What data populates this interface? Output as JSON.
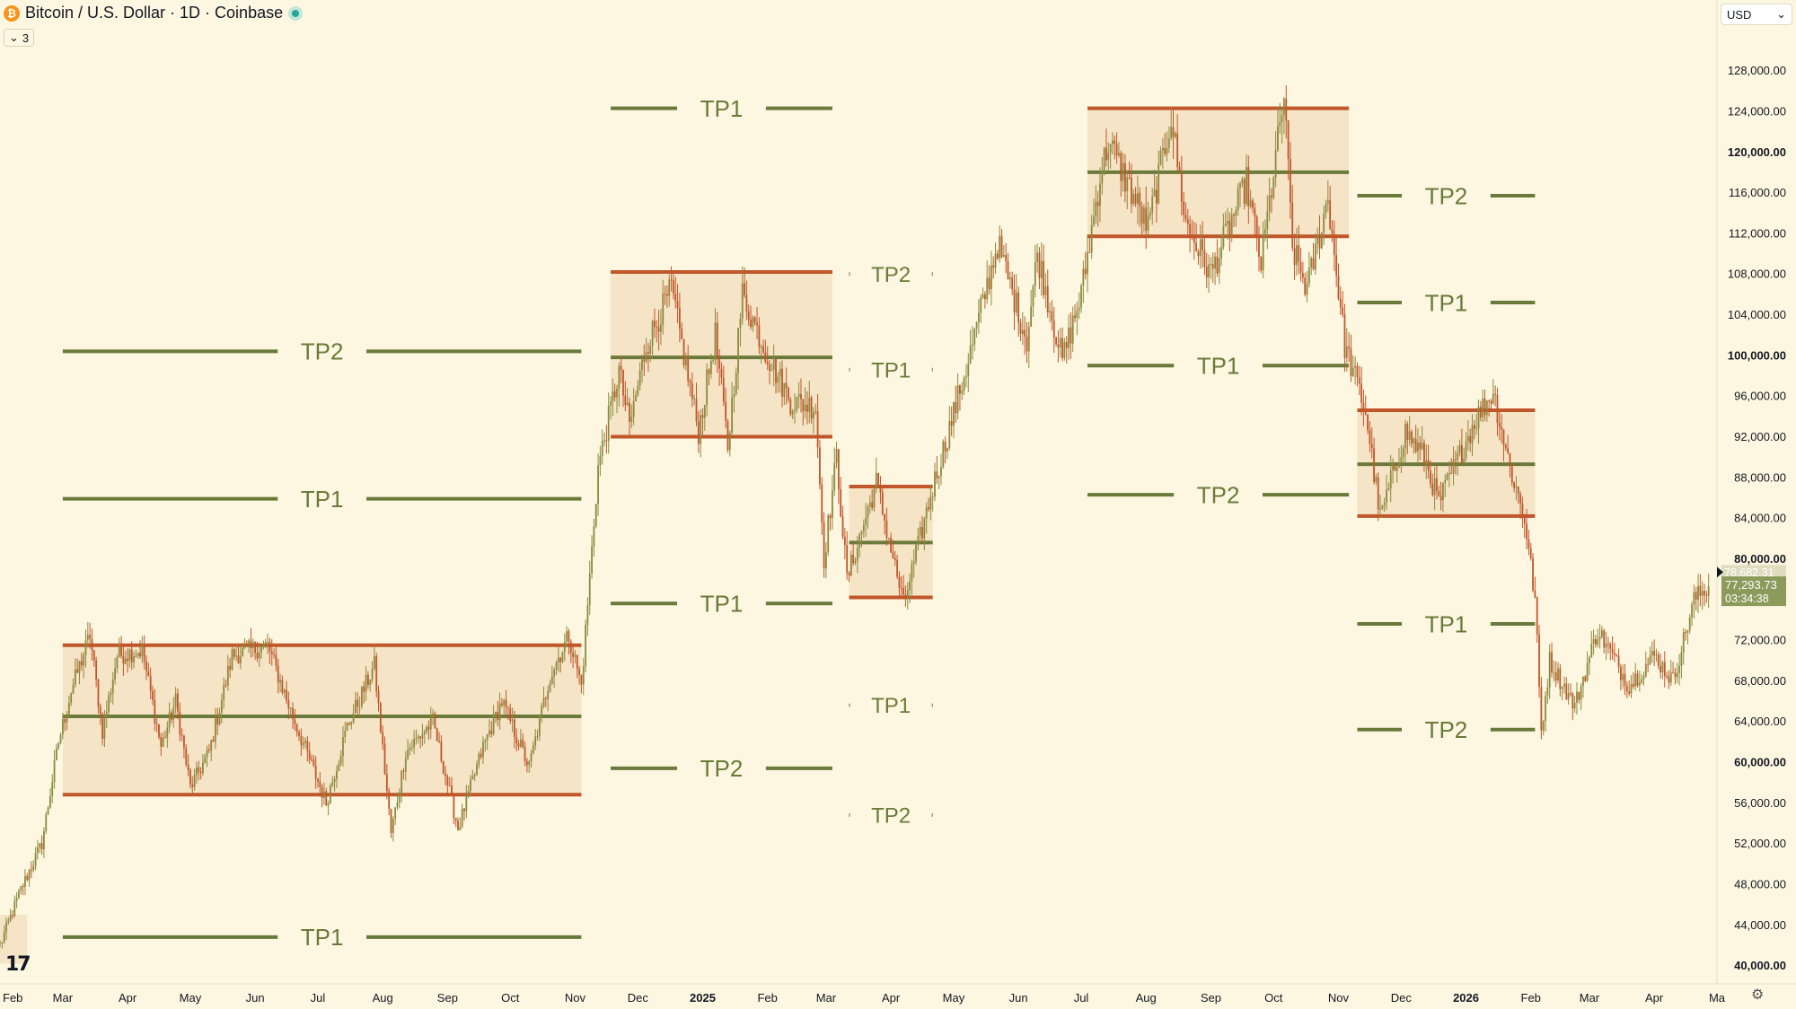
{
  "header": {
    "symbol_title": "Bitcoin / U.S. Dollar · 1D · Coinbase",
    "logo_glyph": "₿",
    "indicator_count": "3"
  },
  "currency_select": {
    "value": "USD"
  },
  "brand_logo": "17",
  "colors": {
    "background": "#fdf7e1",
    "range_box": "#f5e4c6",
    "range_border": "#c0562a",
    "target_line": "#6a7a3a",
    "candle_up": "#8a8a3e",
    "candle_down": "#c0562a",
    "axis_text": "#131722",
    "last_price_bg": "#8c9a5b",
    "prev_price_bg": "#c5c8a4"
  },
  "chart_data": {
    "type": "candlestick",
    "title": "Bitcoin / U.S. Dollar · 1D · Coinbase",
    "price_axis": {
      "range": [
        38200,
        133000
      ],
      "ticks": [
        {
          "value": 128000,
          "label": "128,000.00",
          "bold": false
        },
        {
          "value": 124000,
          "label": "124,000.00",
          "bold": false
        },
        {
          "value": 120000,
          "label": "120,000.00",
          "bold": true
        },
        {
          "value": 116000,
          "label": "116,000.00",
          "bold": false
        },
        {
          "value": 112000,
          "label": "112,000.00",
          "bold": false
        },
        {
          "value": 108000,
          "label": "108,000.00",
          "bold": false
        },
        {
          "value": 104000,
          "label": "104,000.00",
          "bold": false
        },
        {
          "value": 100000,
          "label": "100,000.00",
          "bold": true
        },
        {
          "value": 96000,
          "label": "96,000.00",
          "bold": false
        },
        {
          "value": 92000,
          "label": "92,000.00",
          "bold": false
        },
        {
          "value": 88000,
          "label": "88,000.00",
          "bold": false
        },
        {
          "value": 84000,
          "label": "84,000.00",
          "bold": false
        },
        {
          "value": 80000,
          "label": "80,000.00",
          "bold": true
        },
        {
          "value": 72000,
          "label": "72,000.00",
          "bold": false
        },
        {
          "value": 68000,
          "label": "68,000.00",
          "bold": false
        },
        {
          "value": 64000,
          "label": "64,000.00",
          "bold": false
        },
        {
          "value": 60000,
          "label": "60,000.00",
          "bold": true
        },
        {
          "value": 56000,
          "label": "56,000.00",
          "bold": false
        },
        {
          "value": 52000,
          "label": "52,000.00",
          "bold": false
        },
        {
          "value": 48000,
          "label": "48,000.00",
          "bold": false
        },
        {
          "value": 44000,
          "label": "44,000.00",
          "bold": false
        },
        {
          "value": 40000,
          "label": "40,000.00",
          "bold": true
        }
      ]
    },
    "time_axis": {
      "range": [
        "2024-01-31",
        "2026-05-01"
      ],
      "ticks": [
        {
          "date": "2024-02-01",
          "label": "Feb",
          "bold": false
        },
        {
          "date": "2024-03-01",
          "label": "Mar",
          "bold": false
        },
        {
          "date": "2024-04-01",
          "label": "Apr",
          "bold": false
        },
        {
          "date": "2024-05-01",
          "label": "May",
          "bold": false
        },
        {
          "date": "2024-06-01",
          "label": "Jun",
          "bold": false
        },
        {
          "date": "2024-07-01",
          "label": "Jul",
          "bold": false
        },
        {
          "date": "2024-08-01",
          "label": "Aug",
          "bold": false
        },
        {
          "date": "2024-09-01",
          "label": "Sep",
          "bold": false
        },
        {
          "date": "2024-10-01",
          "label": "Oct",
          "bold": false
        },
        {
          "date": "2024-11-01",
          "label": "Nov",
          "bold": false
        },
        {
          "date": "2024-12-01",
          "label": "Dec",
          "bold": false
        },
        {
          "date": "2025-01-01",
          "label": "2025",
          "bold": true
        },
        {
          "date": "2025-02-01",
          "label": "Feb",
          "bold": false
        },
        {
          "date": "2025-03-01",
          "label": "Mar",
          "bold": false
        },
        {
          "date": "2025-04-01",
          "label": "Apr",
          "bold": false
        },
        {
          "date": "2025-05-01",
          "label": "May",
          "bold": false
        },
        {
          "date": "2025-06-01",
          "label": "Jun",
          "bold": false
        },
        {
          "date": "2025-07-01",
          "label": "Jul",
          "bold": false
        },
        {
          "date": "2025-08-01",
          "label": "Aug",
          "bold": false
        },
        {
          "date": "2025-09-01",
          "label": "Sep",
          "bold": false
        },
        {
          "date": "2025-10-01",
          "label": "Oct",
          "bold": false
        },
        {
          "date": "2025-11-01",
          "label": "Nov",
          "bold": false
        },
        {
          "date": "2025-12-01",
          "label": "Dec",
          "bold": false
        },
        {
          "date": "2026-01-01",
          "label": "2026",
          "bold": true
        },
        {
          "date": "2026-02-01",
          "label": "Feb",
          "bold": false
        },
        {
          "date": "2026-03-01",
          "label": "Mar",
          "bold": false
        },
        {
          "date": "2026-04-01",
          "label": "Apr",
          "bold": false
        },
        {
          "date": "2026-05-01",
          "label": "Ma",
          "bold": false
        }
      ]
    },
    "price_path": [
      [
        "2024-01-31",
        42000
      ],
      [
        "2024-02-10",
        47500
      ],
      [
        "2024-02-20",
        52000
      ],
      [
        "2024-02-28",
        62000
      ],
      [
        "2024-03-05",
        67000
      ],
      [
        "2024-03-14",
        72500
      ],
      [
        "2024-03-20",
        63000
      ],
      [
        "2024-03-27",
        70500
      ],
      [
        "2024-04-08",
        71000
      ],
      [
        "2024-04-17",
        61500
      ],
      [
        "2024-04-24",
        66000
      ],
      [
        "2024-05-01",
        57500
      ],
      [
        "2024-05-10",
        61000
      ],
      [
        "2024-05-21",
        70500
      ],
      [
        "2024-06-07",
        71500
      ],
      [
        "2024-06-18",
        65000
      ],
      [
        "2024-07-05",
        56000
      ],
      [
        "2024-07-15",
        63500
      ],
      [
        "2024-07-28",
        69500
      ],
      [
        "2024-08-05",
        53000
      ],
      [
        "2024-08-12",
        61000
      ],
      [
        "2024-08-25",
        64000
      ],
      [
        "2024-09-06",
        53500
      ],
      [
        "2024-09-18",
        61500
      ],
      [
        "2024-09-27",
        66000
      ],
      [
        "2024-10-10",
        59500
      ],
      [
        "2024-10-20",
        68500
      ],
      [
        "2024-10-29",
        72500
      ],
      [
        "2024-11-04",
        67500
      ],
      [
        "2024-11-12",
        89000
      ],
      [
        "2024-11-22",
        98500
      ],
      [
        "2024-11-27",
        93000
      ],
      [
        "2024-12-05",
        101000
      ],
      [
        "2024-12-17",
        106500
      ],
      [
        "2024-12-30",
        92500
      ],
      [
        "2025-01-07",
        102000
      ],
      [
        "2025-01-13",
        91000
      ],
      [
        "2025-01-20",
        106000
      ],
      [
        "2025-02-01",
        100000
      ],
      [
        "2025-02-12",
        95500
      ],
      [
        "2025-02-24",
        95000
      ],
      [
        "2025-02-28",
        80000
      ],
      [
        "2025-03-06",
        90000
      ],
      [
        "2025-03-11",
        78000
      ],
      [
        "2025-03-25",
        87500
      ],
      [
        "2025-04-07",
        75500
      ],
      [
        "2025-04-21",
        87000
      ],
      [
        "2025-05-08",
        99500
      ],
      [
        "2025-05-22",
        111000
      ],
      [
        "2025-06-05",
        101500
      ],
      [
        "2025-06-10",
        110000
      ],
      [
        "2025-06-22",
        99500
      ],
      [
        "2025-07-01",
        106000
      ],
      [
        "2025-07-10",
        117500
      ],
      [
        "2025-07-14",
        121000
      ],
      [
        "2025-08-02",
        112500
      ],
      [
        "2025-08-13",
        123500
      ],
      [
        "2025-08-20",
        113000
      ],
      [
        "2025-09-01",
        108000
      ],
      [
        "2025-09-18",
        117000
      ],
      [
        "2025-09-25",
        109000
      ],
      [
        "2025-10-06",
        125500
      ],
      [
        "2025-10-10",
        110500
      ],
      [
        "2025-10-17",
        106500
      ],
      [
        "2025-10-27",
        115500
      ],
      [
        "2025-11-04",
        101000
      ],
      [
        "2025-11-14",
        94500
      ],
      [
        "2025-11-21",
        84000
      ],
      [
        "2025-12-03",
        92500
      ],
      [
        "2025-12-12",
        90000
      ],
      [
        "2025-12-19",
        85500
      ],
      [
        "2026-01-05",
        93500
      ],
      [
        "2026-01-14",
        96500
      ],
      [
        "2026-01-22",
        89000
      ],
      [
        "2026-01-29",
        84000
      ],
      [
        "2026-02-03",
        76000
      ],
      [
        "2026-02-06",
        63000
      ],
      [
        "2026-02-10",
        70000
      ],
      [
        "2026-02-22",
        65500
      ],
      [
        "2026-03-05",
        73000
      ],
      [
        "2026-03-20",
        67500
      ],
      [
        "2026-04-01",
        70500
      ],
      [
        "2026-04-10",
        68000
      ],
      [
        "2026-04-20",
        76000
      ],
      [
        "2026-04-27",
        77293.73
      ]
    ],
    "range_boxes": [
      {
        "start": "2024-03-01",
        "end": "2024-11-04",
        "top": 71500,
        "mid": 64500,
        "bottom": 56800
      },
      {
        "start": "2024-11-18",
        "end": "2025-03-04",
        "top": 108200,
        "mid": 99800,
        "bottom": 92000
      },
      {
        "start": "2025-03-12",
        "end": "2025-04-21",
        "top": 87100,
        "mid": 81600,
        "bottom": 76200
      },
      {
        "start": "2025-07-04",
        "end": "2025-11-06",
        "top": 124300,
        "mid": 118000,
        "bottom": 111700
      },
      {
        "start": "2025-11-10",
        "end": "2026-02-03",
        "top": 94600,
        "mid": 89300,
        "bottom": 84200
      },
      {
        "start": "2024-01-31",
        "end": "2024-02-13",
        "top": 45000,
        "mid": null,
        "bottom": 40200
      }
    ],
    "targets": [
      {
        "label": "TP2",
        "start": "2024-03-01",
        "end": "2024-11-04",
        "value": 100400
      },
      {
        "label": "TP1",
        "start": "2024-03-01",
        "end": "2024-11-04",
        "value": 85900
      },
      {
        "label": "TP1",
        "start": "2024-03-01",
        "end": "2024-11-04",
        "value": 42800
      },
      {
        "label": "TP1",
        "start": "2024-11-18",
        "end": "2025-03-04",
        "value": 124300
      },
      {
        "label": "TP1",
        "start": "2024-11-18",
        "end": "2025-03-04",
        "value": 75600
      },
      {
        "label": "TP2",
        "start": "2024-11-18",
        "end": "2025-03-04",
        "value": 59400
      },
      {
        "label": "TP2",
        "start": "2025-03-12",
        "end": "2025-04-21",
        "value": 108000
      },
      {
        "label": "TP1",
        "start": "2025-03-12",
        "end": "2025-04-21",
        "value": 98600
      },
      {
        "label": "TP1",
        "start": "2025-03-12",
        "end": "2025-04-21",
        "value": 65600
      },
      {
        "label": "TP2",
        "start": "2025-03-12",
        "end": "2025-04-21",
        "value": 54800
      },
      {
        "label": "TP1",
        "start": "2025-07-04",
        "end": "2025-11-06",
        "value": 99000
      },
      {
        "label": "TP2",
        "start": "2025-07-04",
        "end": "2025-11-06",
        "value": 86300
      },
      {
        "label": "TP2",
        "start": "2025-11-10",
        "end": "2026-02-03",
        "value": 115700
      },
      {
        "label": "TP1",
        "start": "2025-11-10",
        "end": "2026-02-03",
        "value": 105200
      },
      {
        "label": "TP1",
        "start": "2025-11-10",
        "end": "2026-02-03",
        "value": 73600
      },
      {
        "label": "TP2",
        "start": "2025-11-10",
        "end": "2026-02-03",
        "value": 63200
      }
    ],
    "last_price": {
      "value": 77293.73,
      "label": "77,293.73",
      "countdown": "03:34:38"
    },
    "prev_price": {
      "value": 78682.31,
      "label": "78,682.31"
    }
  }
}
